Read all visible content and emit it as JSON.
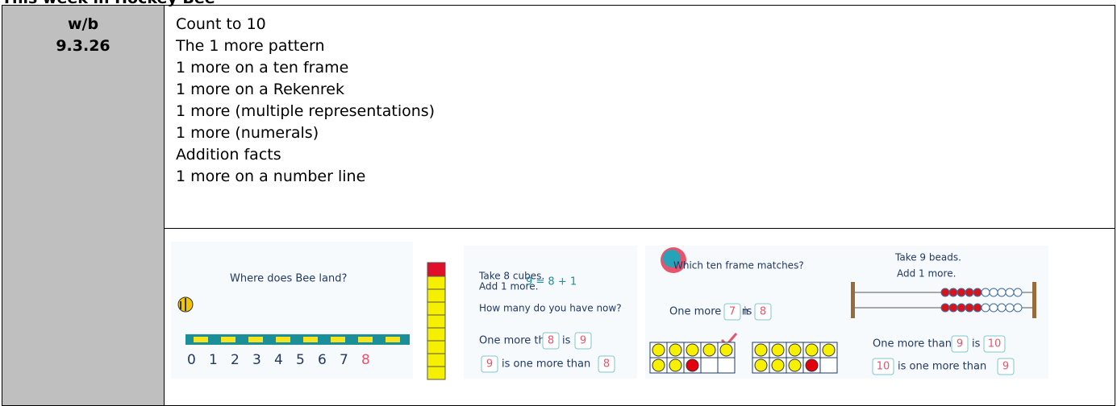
{
  "header": {
    "title": "This week in Hockey Bee"
  },
  "table": {
    "week_label": "w/b",
    "week_date": "9.3.26",
    "topics": [
      "Count to 10",
      "The 1 more pattern",
      "1 more on a ten frame",
      "1 more on a Rekenrek",
      "1 more (multiple representations)",
      "1 more (numerals)",
      "Addition facts",
      "1 more on a number line"
    ],
    "images": {
      "bee": {
        "question": "Where does Bee land?",
        "number_line": [
          "0",
          "1",
          "2",
          "3",
          "4",
          "5",
          "6",
          "7",
          "8"
        ]
      },
      "cubes": {
        "instruction": [
          "Take 8 cubes.",
          "Add 1 more."
        ],
        "equation": "9 = 8 + 1",
        "question": "How many do you have now?",
        "sentence_1": [
          "One more than",
          "8",
          "is",
          "9"
        ],
        "sentence_2": [
          "9",
          "is one more than",
          "8"
        ]
      },
      "ten_frames": {
        "question": "Which ten frame matches?",
        "sentence": [
          "One more than",
          "7",
          "is",
          "8"
        ]
      },
      "rekenrek": {
        "instruction": [
          "Take 9 beads.",
          "Add 1 more."
        ],
        "sentence_1": [
          "One more than",
          "9",
          "is",
          "10"
        ],
        "sentence_2": [
          "10",
          "is one more than",
          "9"
        ]
      }
    }
  }
}
